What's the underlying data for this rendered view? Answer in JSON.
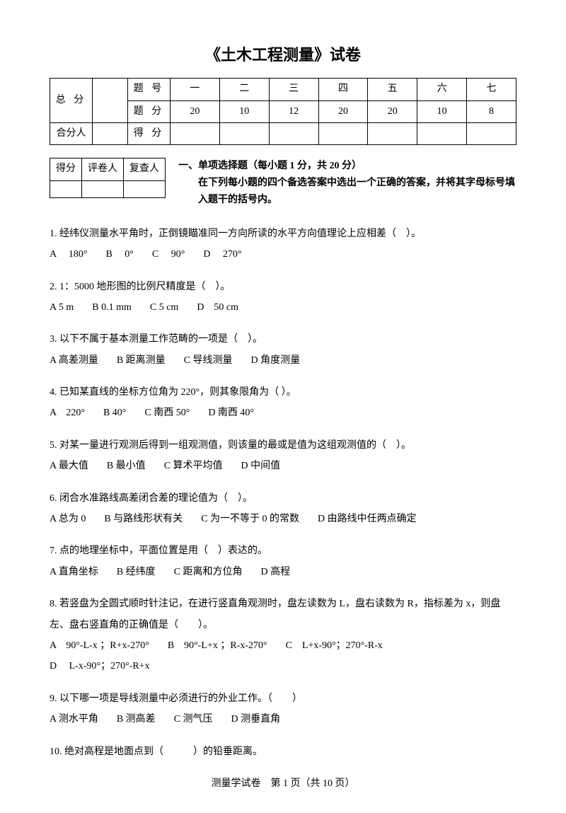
{
  "title": "《土木工程测量》试卷",
  "score_table": {
    "row1_label": "总 分",
    "row1_col2": "题 号",
    "cols": [
      "一",
      "二",
      "三",
      "四",
      "五",
      "六",
      "七"
    ],
    "row2_col2": "题 分",
    "points": [
      "20",
      "10",
      "12",
      "20",
      "20",
      "10",
      "8"
    ],
    "row3_label": "合分人",
    "row3_col2": "得 分"
  },
  "mini_table": {
    "h1": "得分",
    "h2": "评卷人",
    "h3": "复查人"
  },
  "section_header": {
    "line1": "一、单项选择题（每小题 1 分，共 20 分）",
    "line2": "在下列每小题的四个备选答案中选出一个正确的答案，并将其字母标号填入题干的括号内。"
  },
  "questions": [
    {
      "stem": "1. 经纬仪测量水平角时，正倒镜瞄准同一方向所读的水平方向值理论上应相差（　）。",
      "opts": [
        "A　 180°",
        "B　 0°",
        "C　 90°",
        "D　 270°"
      ]
    },
    {
      "stem": "2. 1：5000 地形图的比例尺精度是（　）。",
      "opts": [
        "A 5 m",
        "B 0.1 mm",
        "C 5 cm",
        "D　50 cm"
      ]
    },
    {
      "stem": "3. 以下不属于基本测量工作范畴的一项是（　）。",
      "opts": [
        "A 高差测量",
        "B 距离测量",
        "C 导线测量",
        "D 角度测量"
      ]
    },
    {
      "stem": "4. 已知某直线的坐标方位角为 220°，则其象限角为（ ）。",
      "opts": [
        "A　220°",
        "B 40°",
        "C 南西 50°",
        "D 南西 40°"
      ]
    },
    {
      "stem": "5. 对某一量进行观测后得到一组观测值，则该量的最或是值为这组观测值的（　）。",
      "opts": [
        "A 最大值",
        "B 最小值",
        "C 算术平均值",
        "D 中间值"
      ]
    },
    {
      "stem": "6. 闭合水准路线高差闭合差的理论值为（　）。",
      "opts": [
        "A 总为 0",
        "B 与路线形状有关",
        "C 为一不等于 0 的常数",
        "D 由路线中任两点确定"
      ]
    },
    {
      "stem": "7. 点的地理坐标中，平面位置是用（　）表达的。",
      "opts": [
        "A 直角坐标",
        "B 经纬度",
        "C 距离和方位角",
        "D 高程"
      ]
    },
    {
      "stem": "8. 若竖盘为全圆式顺时针注记，在进行竖直角观测时，盘左读数为 L，盘右读数为 R，指标差为 x，则盘左、盘右竖直角的正确值是（　　）。",
      "opts": [
        "A　90°-L-x ；R+x-270°",
        "B　90°-L+x ；R-x-270°",
        "C　L+x-90°；270°-R-x",
        "D　 L-x-90°；270°-R+x"
      ]
    },
    {
      "stem": "9. 以下哪一项是导线测量中必须进行的外业工作。（　　）",
      "opts": [
        "A 测水平角",
        "B 测高差",
        "C 测气压",
        "D 测垂直角"
      ]
    },
    {
      "stem": "10. 绝对高程是地面点到（　　　）的铅垂距离。",
      "opts": []
    }
  ],
  "footer": "测量学试卷　第 1 页（共 10 页）"
}
